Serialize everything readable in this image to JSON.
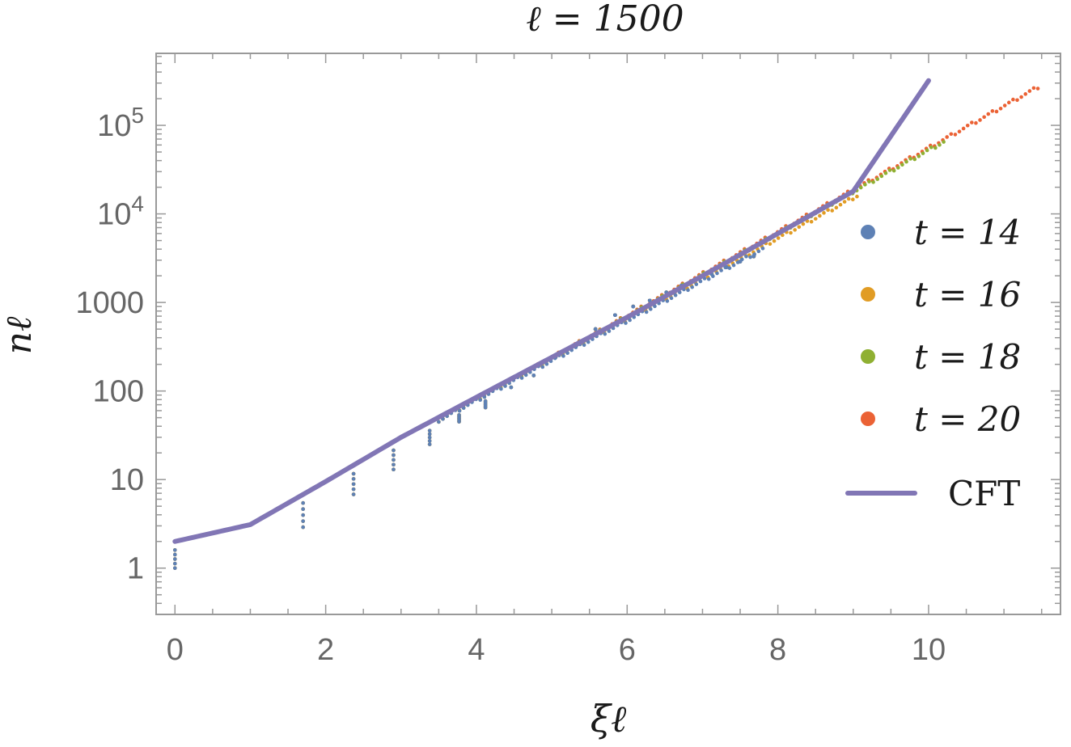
{
  "chart_data": {
    "type": "scatter",
    "title": "ℓ = 1500",
    "xlabel": "ξℓ",
    "ylabel": "nℓ",
    "xlim": [
      -0.25,
      11.75
    ],
    "ylim": [
      0.3,
      650000
    ],
    "y_scale": "log",
    "x_ticks": [
      0,
      2,
      4,
      6,
      8,
      10
    ],
    "x_tick_labels": [
      "0",
      "2",
      "4",
      "6",
      "8",
      "10"
    ],
    "y_ticks": [
      1,
      10,
      100,
      1000,
      10000,
      100000
    ],
    "y_tick_labels": [
      {
        "base": "1",
        "exp": ""
      },
      {
        "base": "10",
        "exp": ""
      },
      {
        "base": "100",
        "exp": ""
      },
      {
        "base": "1000",
        "exp": ""
      },
      {
        "base": "10",
        "exp": "4"
      },
      {
        "base": "10",
        "exp": "5"
      }
    ],
    "legend_position": "right",
    "series": [
      {
        "name": "t = 14",
        "color": "#5e81b5",
        "kind": "points",
        "x_max": 7.8,
        "y_end": 4000
      },
      {
        "name": "t = 16",
        "color": "#e19c24",
        "kind": "points",
        "x_max": 9.05,
        "y_end": 16000
      },
      {
        "name": "t = 18",
        "color": "#8fb032",
        "kind": "points",
        "x_max": 10.2,
        "y_end": 65000
      },
      {
        "name": "t = 20",
        "color": "#eb6235",
        "kind": "points",
        "x_max": 11.45,
        "y_end": 270000
      },
      {
        "name": "CFT",
        "color": "#8176b5",
        "kind": "line",
        "x": [
          0,
          1,
          2,
          3,
          4,
          5,
          6,
          7,
          8,
          9,
          10
        ],
        "y": [
          2,
          3.1,
          9.5,
          30,
          85,
          240,
          680,
          2000,
          6000,
          18000,
          320000
        ]
      }
    ],
    "lower_scatter": {
      "x": [
        0,
        1.7,
        2.37,
        2.9,
        3.38,
        3.77,
        4.12,
        4.46,
        4.76,
        5.05,
        5.33,
        5.58,
        5.84,
        6.08,
        6.3,
        6.52,
        6.72,
        6.93,
        7.12,
        7.32,
        7.5,
        7.68
      ],
      "y": [
        1,
        2.9,
        6.8,
        13,
        25,
        45,
        65,
        110,
        150,
        240,
        330,
        500,
        720,
        900,
        1050,
        1300,
        1550,
        1850,
        2100,
        2500,
        2900,
        3300
      ]
    }
  }
}
